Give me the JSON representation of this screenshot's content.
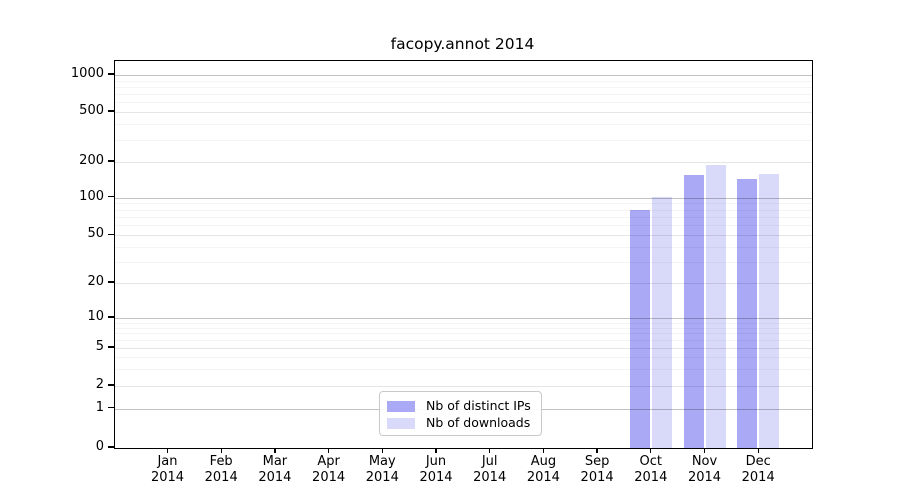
{
  "chart": {
    "title": "facopy.annot 2014",
    "y_axis": {
      "tick_labels": [
        "0",
        "1",
        "2",
        "5",
        "10",
        "20",
        "50",
        "100",
        "200",
        "500",
        "1000"
      ],
      "tick_values": [
        0,
        1,
        2,
        5,
        10,
        20,
        50,
        100,
        200,
        500,
        1000
      ]
    },
    "x_axis": {
      "months": [
        "Jan",
        "Feb",
        "Mar",
        "Apr",
        "May",
        "Jun",
        "Jul",
        "Aug",
        "Sep",
        "Oct",
        "Nov",
        "Dec"
      ],
      "year": "2014"
    },
    "legend": {
      "items": [
        {
          "label": "Nb of distinct IPs",
          "color": "#a9a9f6"
        },
        {
          "label": "Nb of downloads",
          "color": "#d9d9f9"
        }
      ]
    }
  },
  "chart_data": {
    "type": "bar",
    "title": "facopy.annot 2014",
    "categories": [
      "Jan 2014",
      "Feb 2014",
      "Mar 2014",
      "Apr 2014",
      "May 2014",
      "Jun 2014",
      "Jul 2014",
      "Aug 2014",
      "Sep 2014",
      "Oct 2014",
      "Nov 2014",
      "Dec 2014"
    ],
    "series": [
      {
        "name": "Nb of distinct IPs",
        "color": "#a9a9f6",
        "values": [
          0,
          0,
          0,
          0,
          0,
          0,
          0,
          0,
          0,
          80,
          155,
          145
        ]
      },
      {
        "name": "Nb of downloads",
        "color": "#d9d9f9",
        "values": [
          0,
          0,
          0,
          0,
          0,
          0,
          0,
          0,
          0,
          102,
          190,
          158
        ]
      }
    ],
    "xlabel": "",
    "ylabel": "",
    "yscale": "symlog",
    "y_ticks": [
      0,
      1,
      2,
      5,
      10,
      20,
      50,
      100,
      200,
      500,
      1000
    ],
    "ylim": [
      0,
      1300
    ],
    "grid": true,
    "legend_position": "lower center"
  }
}
